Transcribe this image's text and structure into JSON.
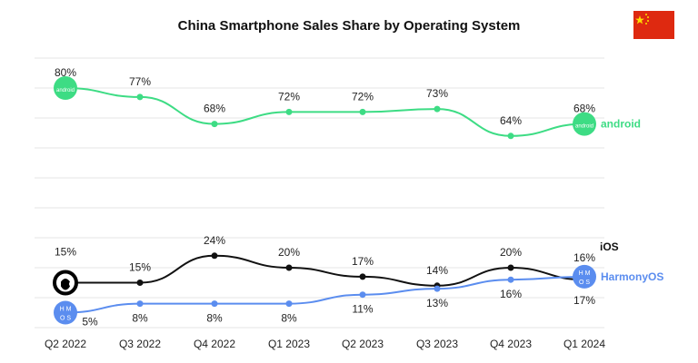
{
  "chart_data": {
    "type": "line",
    "title": "China Smartphone Sales Share by Operating System",
    "categories": [
      "Q2 2022",
      "Q3 2022",
      "Q4 2022",
      "Q1 2023",
      "Q2 2023",
      "Q3 2023",
      "Q4 2023",
      "Q1 2024"
    ],
    "ylim": [
      0,
      90
    ],
    "grid": true,
    "legend": "right",
    "series": [
      {
        "name": "android",
        "color": "#3ddc84",
        "values": [
          80,
          77,
          68,
          72,
          72,
          73,
          64,
          68
        ],
        "labels": [
          "80%",
          "77%",
          "68%",
          "72%",
          "72%",
          "73%",
          "64%",
          "68%"
        ]
      },
      {
        "name": "iOS",
        "color": "#111111",
        "values": [
          15,
          15,
          24,
          20,
          17,
          14,
          20,
          16
        ],
        "labels": [
          "15%",
          "15%",
          "24%",
          "20%",
          "17%",
          "14%",
          "20%",
          "16%"
        ]
      },
      {
        "name": "HarmonyOS",
        "color": "#5b8def",
        "values": [
          5,
          8,
          8,
          8,
          11,
          13,
          16,
          17
        ],
        "labels": [
          "5%",
          "8%",
          "8%",
          "8%",
          "11%",
          "13%",
          "16%",
          "17%"
        ]
      }
    ],
    "logos": {
      "android": "android",
      "harmony": "H M O S"
    }
  },
  "flag": "china-flag"
}
